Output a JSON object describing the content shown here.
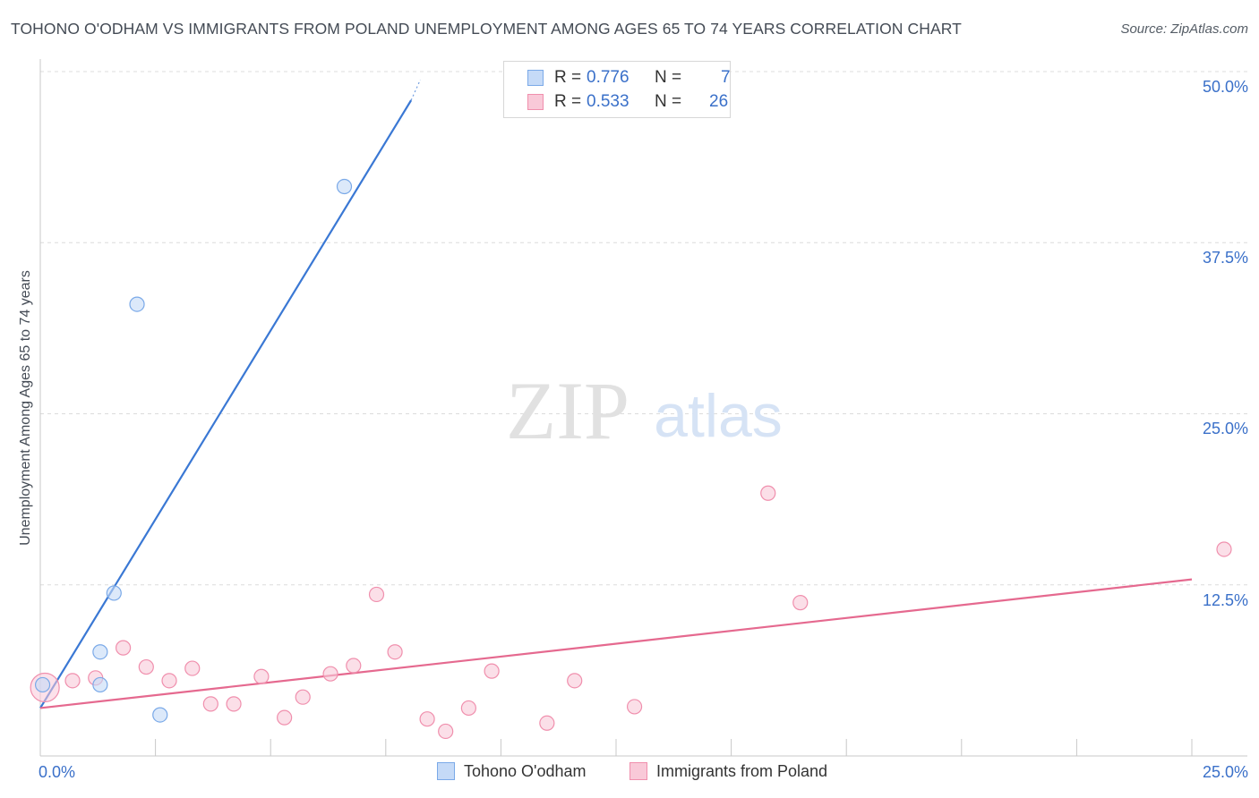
{
  "header": {
    "title": "TOHONO O'ODHAM VS IMMIGRANTS FROM POLAND UNEMPLOYMENT AMONG AGES 65 TO 74 YEARS CORRELATION CHART",
    "source": "Source: ZipAtlas.com"
  },
  "watermark": {
    "zip": "ZIP",
    "atlas": "atlas"
  },
  "legend_top": {
    "r_label": "R =",
    "n_label": "N =",
    "rows": [
      {
        "r": "0.776",
        "n": "7"
      },
      {
        "r": "0.533",
        "n": "26"
      }
    ]
  },
  "chart_data": {
    "type": "scatter",
    "title": "TOHONO O'ODHAM VS IMMIGRANTS FROM POLAND UNEMPLOYMENT AMONG AGES 65 TO 74 YEARS CORRELATION CHART",
    "xlabel": "",
    "ylabel": "Unemployment Among Ages 65 to 74 years",
    "xlim": [
      0,
      25
    ],
    "ylim": [
      0,
      50
    ],
    "x_tick_labels": [
      "0.0%",
      "25.0%"
    ],
    "y_tick_labels": [
      "12.5%",
      "25.0%",
      "37.5%",
      "50.0%"
    ],
    "y_ticks": [
      12.5,
      25.0,
      37.5,
      50.0
    ],
    "grid": true,
    "series": [
      {
        "name": "Tohono O'odham",
        "color": "#7aa9e8",
        "fill": "#c5daf7",
        "line_color": "#3a78d4",
        "r": 0.776,
        "n": 7,
        "points": [
          [
            0.05,
            5.2
          ],
          [
            1.3,
            5.2
          ],
          [
            1.3,
            7.6
          ],
          [
            1.6,
            11.9
          ],
          [
            2.1,
            33.0
          ],
          [
            2.6,
            3.0
          ],
          [
            6.6,
            41.6
          ]
        ],
        "trend": {
          "x0": 0.0,
          "y0": 3.5,
          "x1": 8.05,
          "y1": 47.9,
          "dash_x1": 8.25,
          "dash_y1": 49.4
        }
      },
      {
        "name": "Immigrants from Poland",
        "color": "#f08fad",
        "fill": "#f9c9d8",
        "line_color": "#e5698f",
        "r": 0.533,
        "n": 26,
        "points": [
          [
            0.1,
            5.0
          ],
          [
            0.7,
            5.5
          ],
          [
            1.2,
            5.7
          ],
          [
            1.8,
            7.9
          ],
          [
            2.3,
            6.5
          ],
          [
            2.8,
            5.5
          ],
          [
            3.3,
            6.4
          ],
          [
            3.7,
            3.8
          ],
          [
            4.2,
            3.8
          ],
          [
            4.8,
            5.8
          ],
          [
            5.3,
            2.8
          ],
          [
            5.7,
            4.3
          ],
          [
            6.3,
            6.0
          ],
          [
            6.8,
            6.6
          ],
          [
            7.3,
            11.8
          ],
          [
            7.7,
            7.6
          ],
          [
            8.4,
            2.7
          ],
          [
            8.8,
            1.8
          ],
          [
            9.3,
            3.5
          ],
          [
            9.8,
            6.2
          ],
          [
            11.0,
            2.4
          ],
          [
            11.6,
            5.5
          ],
          [
            12.9,
            3.6
          ],
          [
            15.8,
            19.2
          ],
          [
            16.5,
            11.2
          ],
          [
            25.7,
            15.1
          ]
        ],
        "trend": {
          "x0": 0.0,
          "y0": 3.5,
          "x1": 25.0,
          "y1": 12.9
        }
      }
    ]
  },
  "legend_bottom": [
    {
      "label": "Tohono O'odham"
    },
    {
      "label": "Immigrants from Poland"
    }
  ]
}
